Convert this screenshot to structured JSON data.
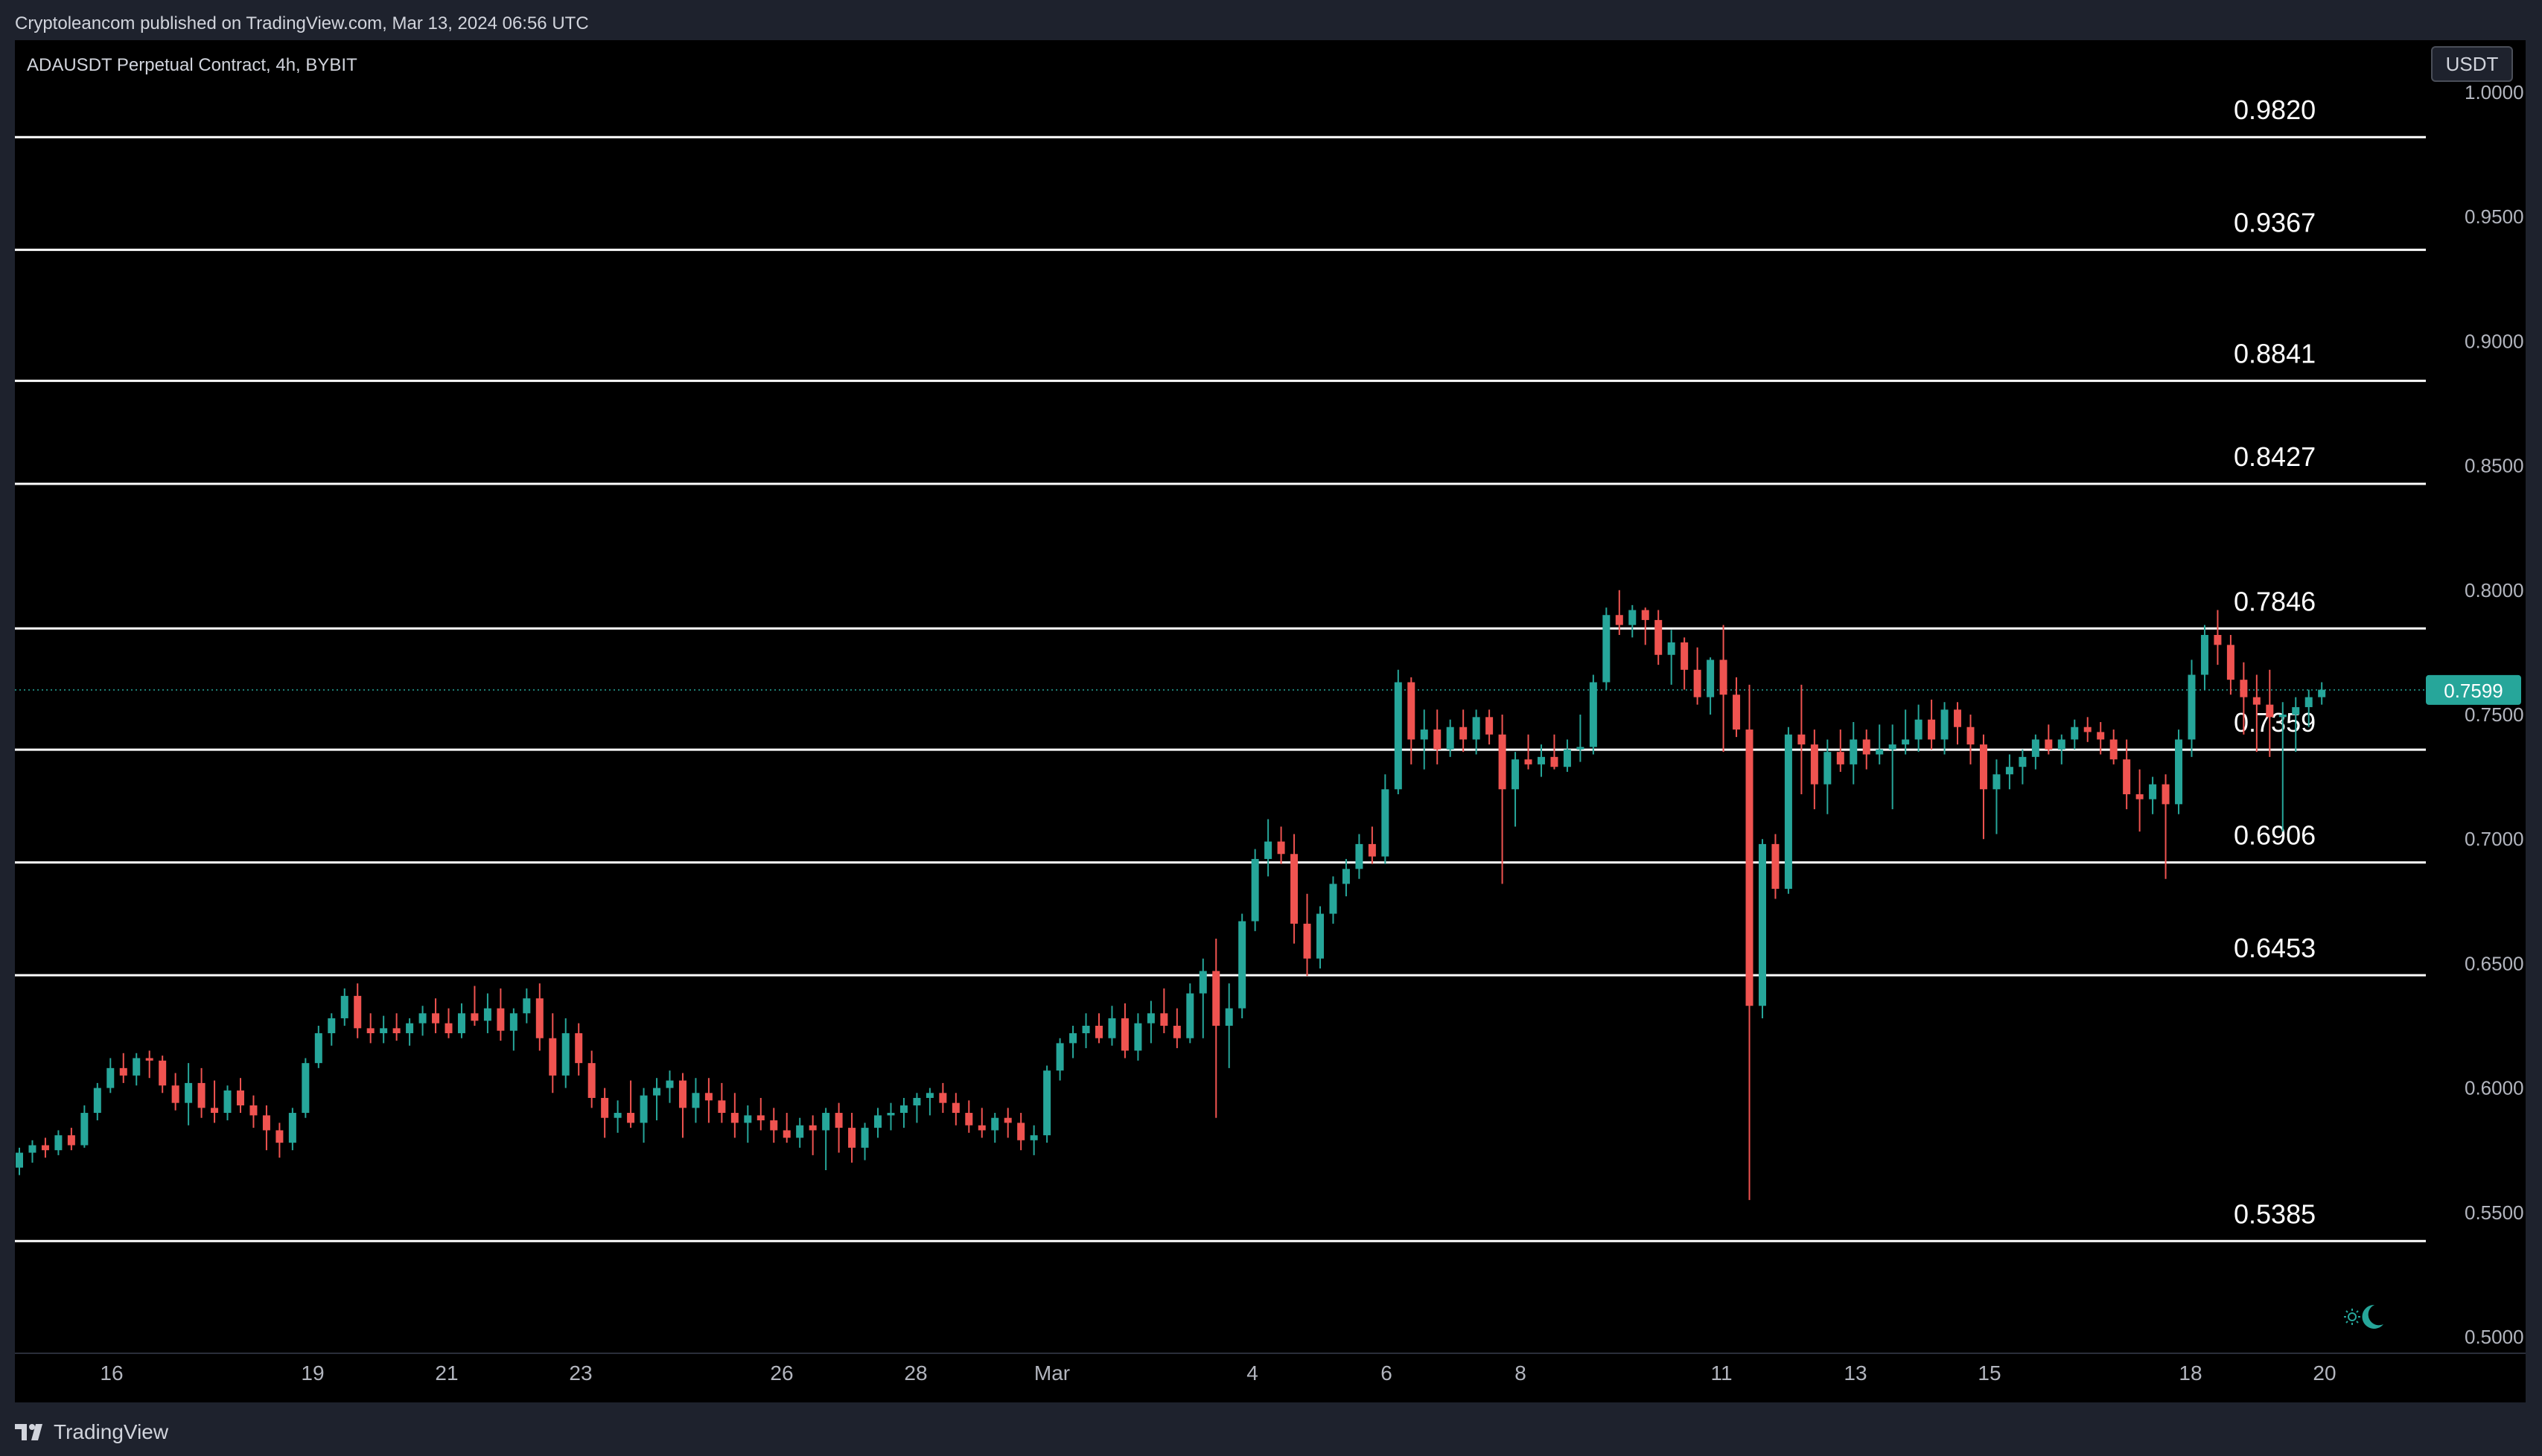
{
  "header": {
    "publish_text": "Cryptoleancom published on TradingView.com, Mar 13, 2024 06:56 UTC"
  },
  "chart": {
    "symbol_line": "ADAUSDT Perpetual Contract, 4h, BYBIT",
    "currency": "USDT",
    "last_price": "0.7599",
    "colors": {
      "background": "#000000",
      "up": "#26a69a",
      "down": "#ef5350",
      "level_line": "#ffffff",
      "axis_text": "#b2b5be"
    }
  },
  "footer": {
    "brand": "TradingView"
  },
  "icons": {
    "theme_toggle": "sun-moon-icon",
    "logo": "tradingview-logo-icon"
  },
  "chart_data": {
    "type": "candlestick",
    "title": "ADAUSDT Perpetual Contract, 4h, BYBIT",
    "ylim": [
      0.5,
      1.0
    ],
    "y_ticks": [
      "0.5000",
      "0.5500",
      "0.6000",
      "0.6500",
      "0.7000",
      "0.7500",
      "0.8000",
      "0.8500",
      "0.9000",
      "0.9500",
      "1.0000"
    ],
    "x_ticks": [
      "16",
      "19",
      "21",
      "23",
      "26",
      "28",
      "Mar",
      "4",
      "6",
      "8",
      "11",
      "13",
      "15",
      "18",
      "20"
    ],
    "current_price": 0.7599,
    "levels": [
      {
        "label": "0.9820",
        "value": 0.982
      },
      {
        "label": "0.9367",
        "value": 0.9367
      },
      {
        "label": "0.8841",
        "value": 0.8841
      },
      {
        "label": "0.8427",
        "value": 0.8427
      },
      {
        "label": "0.7846",
        "value": 0.7846
      },
      {
        "label": "0.7359",
        "value": 0.7359
      },
      {
        "label": "0.6906",
        "value": 0.6906
      },
      {
        "label": "0.6453",
        "value": 0.6453
      },
      {
        "label": "0.5385",
        "value": 0.5385
      }
    ],
    "candles": [
      [
        0.568,
        0.576,
        0.565,
        0.574
      ],
      [
        0.574,
        0.579,
        0.57,
        0.577
      ],
      [
        0.577,
        0.58,
        0.572,
        0.575
      ],
      [
        0.575,
        0.583,
        0.573,
        0.581
      ],
      [
        0.581,
        0.584,
        0.575,
        0.577
      ],
      [
        0.577,
        0.593,
        0.576,
        0.59
      ],
      [
        0.59,
        0.602,
        0.587,
        0.6
      ],
      [
        0.6,
        0.612,
        0.598,
        0.608
      ],
      [
        0.608,
        0.614,
        0.602,
        0.605
      ],
      [
        0.605,
        0.614,
        0.601,
        0.612
      ],
      [
        0.612,
        0.615,
        0.604,
        0.611
      ],
      [
        0.611,
        0.613,
        0.598,
        0.601
      ],
      [
        0.601,
        0.606,
        0.591,
        0.594
      ],
      [
        0.594,
        0.61,
        0.585,
        0.602
      ],
      [
        0.602,
        0.608,
        0.588,
        0.592
      ],
      [
        0.592,
        0.603,
        0.586,
        0.59
      ],
      [
        0.59,
        0.601,
        0.587,
        0.599
      ],
      [
        0.599,
        0.604,
        0.59,
        0.593
      ],
      [
        0.593,
        0.597,
        0.584,
        0.589
      ],
      [
        0.589,
        0.593,
        0.575,
        0.583
      ],
      [
        0.583,
        0.586,
        0.572,
        0.578
      ],
      [
        0.578,
        0.592,
        0.575,
        0.59
      ],
      [
        0.59,
        0.612,
        0.588,
        0.61
      ],
      [
        0.61,
        0.625,
        0.608,
        0.622
      ],
      [
        0.622,
        0.63,
        0.617,
        0.628
      ],
      [
        0.628,
        0.64,
        0.625,
        0.637
      ],
      [
        0.637,
        0.642,
        0.62,
        0.624
      ],
      [
        0.624,
        0.63,
        0.618,
        0.622
      ],
      [
        0.622,
        0.629,
        0.618,
        0.624
      ],
      [
        0.624,
        0.63,
        0.619,
        0.622
      ],
      [
        0.622,
        0.628,
        0.617,
        0.626
      ],
      [
        0.626,
        0.633,
        0.621,
        0.63
      ],
      [
        0.63,
        0.636,
        0.622,
        0.626
      ],
      [
        0.626,
        0.632,
        0.62,
        0.622
      ],
      [
        0.622,
        0.634,
        0.62,
        0.63
      ],
      [
        0.63,
        0.641,
        0.625,
        0.627
      ],
      [
        0.627,
        0.638,
        0.622,
        0.632
      ],
      [
        0.632,
        0.64,
        0.619,
        0.623
      ],
      [
        0.623,
        0.632,
        0.615,
        0.63
      ],
      [
        0.63,
        0.64,
        0.626,
        0.636
      ],
      [
        0.636,
        0.642,
        0.615,
        0.62
      ],
      [
        0.62,
        0.63,
        0.598,
        0.605
      ],
      [
        0.605,
        0.628,
        0.6,
        0.622
      ],
      [
        0.622,
        0.626,
        0.605,
        0.61
      ],
      [
        0.61,
        0.615,
        0.592,
        0.596
      ],
      [
        0.596,
        0.6,
        0.58,
        0.588
      ],
      [
        0.588,
        0.595,
        0.582,
        0.59
      ],
      [
        0.59,
        0.603,
        0.584,
        0.586
      ],
      [
        0.586,
        0.6,
        0.578,
        0.597
      ],
      [
        0.597,
        0.604,
        0.587,
        0.6
      ],
      [
        0.6,
        0.607,
        0.594,
        0.603
      ],
      [
        0.603,
        0.606,
        0.58,
        0.592
      ],
      [
        0.592,
        0.604,
        0.586,
        0.598
      ],
      [
        0.598,
        0.604,
        0.586,
        0.595
      ],
      [
        0.595,
        0.602,
        0.586,
        0.59
      ],
      [
        0.59,
        0.598,
        0.58,
        0.586
      ],
      [
        0.586,
        0.593,
        0.578,
        0.589
      ],
      [
        0.589,
        0.596,
        0.583,
        0.587
      ],
      [
        0.587,
        0.592,
        0.578,
        0.583
      ],
      [
        0.583,
        0.59,
        0.578,
        0.58
      ],
      [
        0.58,
        0.588,
        0.576,
        0.585
      ],
      [
        0.585,
        0.589,
        0.573,
        0.583
      ],
      [
        0.583,
        0.592,
        0.567,
        0.59
      ],
      [
        0.59,
        0.594,
        0.574,
        0.584
      ],
      [
        0.584,
        0.59,
        0.57,
        0.576
      ],
      [
        0.576,
        0.586,
        0.571,
        0.584
      ],
      [
        0.584,
        0.592,
        0.58,
        0.589
      ],
      [
        0.589,
        0.594,
        0.583,
        0.59
      ],
      [
        0.59,
        0.596,
        0.584,
        0.593
      ],
      [
        0.593,
        0.598,
        0.586,
        0.596
      ],
      [
        0.596,
        0.6,
        0.589,
        0.598
      ],
      [
        0.598,
        0.602,
        0.59,
        0.594
      ],
      [
        0.594,
        0.598,
        0.585,
        0.59
      ],
      [
        0.59,
        0.595,
        0.582,
        0.585
      ],
      [
        0.585,
        0.592,
        0.58,
        0.583
      ],
      [
        0.583,
        0.59,
        0.578,
        0.588
      ],
      [
        0.588,
        0.592,
        0.58,
        0.586
      ],
      [
        0.586,
        0.59,
        0.575,
        0.579
      ],
      [
        0.579,
        0.585,
        0.573,
        0.581
      ],
      [
        0.581,
        0.609,
        0.578,
        0.607
      ],
      [
        0.607,
        0.62,
        0.603,
        0.618
      ],
      [
        0.618,
        0.625,
        0.612,
        0.622
      ],
      [
        0.622,
        0.63,
        0.616,
        0.625
      ],
      [
        0.625,
        0.63,
        0.618,
        0.62
      ],
      [
        0.62,
        0.633,
        0.617,
        0.628
      ],
      [
        0.628,
        0.634,
        0.612,
        0.615
      ],
      [
        0.615,
        0.63,
        0.611,
        0.626
      ],
      [
        0.626,
        0.635,
        0.618,
        0.63
      ],
      [
        0.63,
        0.64,
        0.622,
        0.625
      ],
      [
        0.625,
        0.632,
        0.616,
        0.62
      ],
      [
        0.62,
        0.642,
        0.618,
        0.638
      ],
      [
        0.638,
        0.652,
        0.62,
        0.647
      ],
      [
        0.647,
        0.66,
        0.588,
        0.625
      ],
      [
        0.625,
        0.642,
        0.608,
        0.632
      ],
      [
        0.632,
        0.67,
        0.628,
        0.667
      ],
      [
        0.667,
        0.696,
        0.663,
        0.692
      ],
      [
        0.692,
        0.708,
        0.685,
        0.699
      ],
      [
        0.699,
        0.705,
        0.69,
        0.694
      ],
      [
        0.694,
        0.702,
        0.658,
        0.666
      ],
      [
        0.666,
        0.678,
        0.645,
        0.652
      ],
      [
        0.652,
        0.673,
        0.648,
        0.67
      ],
      [
        0.67,
        0.685,
        0.666,
        0.682
      ],
      [
        0.682,
        0.692,
        0.677,
        0.688
      ],
      [
        0.688,
        0.702,
        0.684,
        0.698
      ],
      [
        0.698,
        0.705,
        0.69,
        0.693
      ],
      [
        0.693,
        0.726,
        0.69,
        0.72
      ],
      [
        0.72,
        0.768,
        0.718,
        0.763
      ],
      [
        0.763,
        0.765,
        0.73,
        0.74
      ],
      [
        0.74,
        0.752,
        0.728,
        0.744
      ],
      [
        0.744,
        0.752,
        0.73,
        0.736
      ],
      [
        0.736,
        0.748,
        0.733,
        0.745
      ],
      [
        0.745,
        0.752,
        0.735,
        0.74
      ],
      [
        0.74,
        0.752,
        0.734,
        0.749
      ],
      [
        0.749,
        0.752,
        0.738,
        0.742
      ],
      [
        0.742,
        0.75,
        0.682,
        0.72
      ],
      [
        0.72,
        0.735,
        0.705,
        0.732
      ],
      [
        0.732,
        0.742,
        0.728,
        0.73
      ],
      [
        0.73,
        0.738,
        0.725,
        0.733
      ],
      [
        0.733,
        0.742,
        0.728,
        0.729
      ],
      [
        0.729,
        0.74,
        0.727,
        0.736
      ],
      [
        0.736,
        0.75,
        0.731,
        0.737
      ],
      [
        0.737,
        0.766,
        0.734,
        0.763
      ],
      [
        0.763,
        0.793,
        0.76,
        0.79
      ],
      [
        0.79,
        0.8,
        0.782,
        0.786
      ],
      [
        0.786,
        0.794,
        0.781,
        0.792
      ],
      [
        0.792,
        0.793,
        0.778,
        0.788
      ],
      [
        0.788,
        0.792,
        0.77,
        0.774
      ],
      [
        0.774,
        0.784,
        0.762,
        0.779
      ],
      [
        0.779,
        0.781,
        0.76,
        0.768
      ],
      [
        0.768,
        0.777,
        0.754,
        0.757
      ],
      [
        0.757,
        0.773,
        0.75,
        0.772
      ],
      [
        0.772,
        0.786,
        0.735,
        0.758
      ],
      [
        0.758,
        0.765,
        0.741,
        0.744
      ],
      [
        0.744,
        0.762,
        0.555,
        0.633
      ],
      [
        0.633,
        0.7,
        0.628,
        0.698
      ],
      [
        0.698,
        0.702,
        0.676,
        0.68
      ],
      [
        0.68,
        0.745,
        0.678,
        0.742
      ],
      [
        0.742,
        0.762,
        0.718,
        0.738
      ],
      [
        0.738,
        0.744,
        0.712,
        0.722
      ],
      [
        0.722,
        0.74,
        0.71,
        0.735
      ],
      [
        0.735,
        0.744,
        0.727,
        0.73
      ],
      [
        0.73,
        0.747,
        0.722,
        0.74
      ],
      [
        0.74,
        0.744,
        0.728,
        0.734
      ],
      [
        0.734,
        0.746,
        0.73,
        0.736
      ],
      [
        0.736,
        0.746,
        0.712,
        0.738
      ],
      [
        0.738,
        0.752,
        0.734,
        0.74
      ],
      [
        0.74,
        0.754,
        0.735,
        0.748
      ],
      [
        0.748,
        0.756,
        0.736,
        0.74
      ],
      [
        0.74,
        0.755,
        0.734,
        0.752
      ],
      [
        0.752,
        0.755,
        0.738,
        0.745
      ],
      [
        0.745,
        0.75,
        0.73,
        0.738
      ],
      [
        0.738,
        0.742,
        0.7,
        0.72
      ],
      [
        0.72,
        0.732,
        0.702,
        0.726
      ],
      [
        0.726,
        0.734,
        0.72,
        0.729
      ],
      [
        0.729,
        0.736,
        0.722,
        0.733
      ],
      [
        0.733,
        0.742,
        0.728,
        0.74
      ],
      [
        0.74,
        0.746,
        0.734,
        0.736
      ],
      [
        0.736,
        0.742,
        0.73,
        0.74
      ],
      [
        0.74,
        0.748,
        0.736,
        0.745
      ],
      [
        0.745,
        0.749,
        0.739,
        0.743
      ],
      [
        0.743,
        0.747,
        0.734,
        0.74
      ],
      [
        0.74,
        0.744,
        0.73,
        0.732
      ],
      [
        0.732,
        0.74,
        0.712,
        0.718
      ],
      [
        0.718,
        0.728,
        0.703,
        0.716
      ],
      [
        0.716,
        0.725,
        0.71,
        0.722
      ],
      [
        0.722,
        0.726,
        0.684,
        0.714
      ],
      [
        0.714,
        0.744,
        0.71,
        0.74
      ],
      [
        0.74,
        0.772,
        0.733,
        0.766
      ],
      [
        0.766,
        0.786,
        0.76,
        0.782
      ],
      [
        0.782,
        0.792,
        0.77,
        0.778
      ],
      [
        0.778,
        0.782,
        0.758,
        0.764
      ],
      [
        0.764,
        0.771,
        0.742,
        0.757
      ],
      [
        0.757,
        0.766,
        0.735,
        0.754
      ],
      [
        0.754,
        0.768,
        0.733,
        0.749
      ],
      [
        0.749,
        0.755,
        0.703,
        0.75
      ],
      [
        0.75,
        0.757,
        0.735,
        0.753
      ],
      [
        0.753,
        0.76,
        0.745,
        0.757
      ],
      [
        0.757,
        0.763,
        0.754,
        0.76
      ]
    ]
  }
}
